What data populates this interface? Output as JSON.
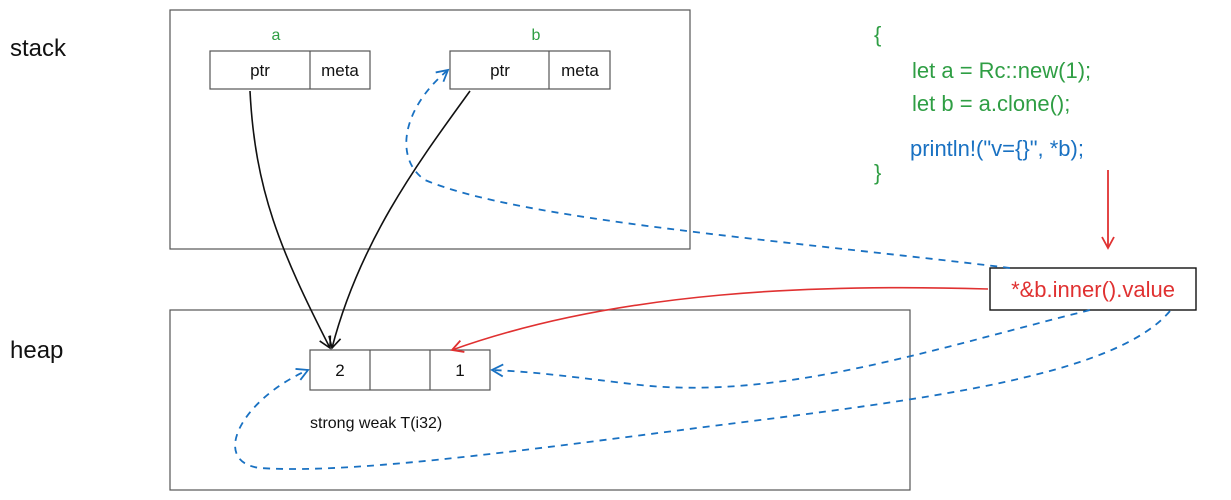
{
  "regions": {
    "stack_label": "stack",
    "heap_label": "heap"
  },
  "stack": {
    "var_a": "a",
    "var_b": "b",
    "ptr_label": "ptr",
    "meta_label": "meta"
  },
  "heap": {
    "strong_value": "2",
    "weak_value": "",
    "t_value": "1",
    "caption": "strong weak T(i32)"
  },
  "code": {
    "open_brace": "{",
    "line1": "let a = Rc::new(1);",
    "line2": "let b = a.clone();",
    "line3": "println!(\"v={}\", *b);",
    "close_brace": "}"
  },
  "expression": "*&b.inner().value",
  "colors": {
    "green": "#2f9e44",
    "blue": "#1971c2",
    "red": "#e03131",
    "black": "#111111",
    "box_border": "#555555"
  }
}
